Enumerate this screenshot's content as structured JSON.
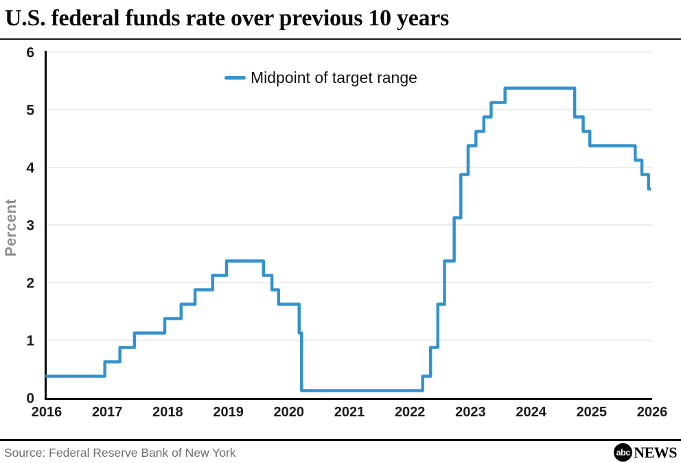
{
  "header": {
    "title": "U.S. federal funds rate over previous 10 years"
  },
  "footer": {
    "source": "Source: Federal Reserve Bank of New York",
    "logo_abc": "abc",
    "logo_news": "NEWS"
  },
  "chart_data": {
    "type": "line",
    "subtype": "step",
    "title": "U.S. federal funds rate over previous 10 years",
    "legend_label": "Midpoint of target range",
    "legend_position": "top-center-inside",
    "ylabel": "Percent",
    "xlabel": "",
    "xlim": [
      2016,
      2026
    ],
    "ylim": [
      0,
      6
    ],
    "xticks": [
      2016,
      2017,
      2018,
      2019,
      2020,
      2021,
      2022,
      2023,
      2024,
      2025,
      2026
    ],
    "yticks": [
      0,
      1,
      2,
      3,
      4,
      5,
      6
    ],
    "grid": true,
    "line_color": "#3492CA",
    "grid_color": "#e7e7e7",
    "axis_color": "#000000",
    "series": [
      {
        "name": "Midpoint of target range",
        "points": [
          [
            2016.0,
            0.375
          ],
          [
            2016.96,
            0.625
          ],
          [
            2017.21,
            0.875
          ],
          [
            2017.45,
            1.125
          ],
          [
            2017.95,
            1.375
          ],
          [
            2018.22,
            1.625
          ],
          [
            2018.45,
            1.875
          ],
          [
            2018.74,
            2.125
          ],
          [
            2018.97,
            2.375
          ],
          [
            2019.58,
            2.125
          ],
          [
            2019.72,
            1.875
          ],
          [
            2019.83,
            1.625
          ],
          [
            2020.17,
            1.125
          ],
          [
            2020.21,
            0.125
          ],
          [
            2022.21,
            0.375
          ],
          [
            2022.34,
            0.875
          ],
          [
            2022.46,
            1.625
          ],
          [
            2022.57,
            2.375
          ],
          [
            2022.73,
            3.125
          ],
          [
            2022.84,
            3.875
          ],
          [
            2022.96,
            4.375
          ],
          [
            2023.09,
            4.625
          ],
          [
            2023.22,
            4.875
          ],
          [
            2023.34,
            5.125
          ],
          [
            2023.57,
            5.375
          ],
          [
            2024.72,
            4.875
          ],
          [
            2024.86,
            4.625
          ],
          [
            2024.97,
            4.375
          ],
          [
            2025.72,
            4.125
          ],
          [
            2025.83,
            3.875
          ],
          [
            2025.94,
            3.625
          ]
        ],
        "x_end": 2025.96
      }
    ]
  }
}
